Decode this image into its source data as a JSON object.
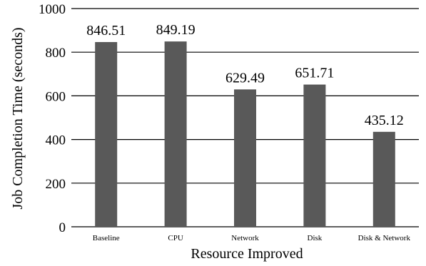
{
  "chart_data": {
    "type": "bar",
    "categories": [
      "Baseline",
      "CPU",
      "Network",
      "Disk",
      "Disk & Network"
    ],
    "values": [
      846.51,
      849.19,
      629.49,
      651.71,
      435.12
    ],
    "data_labels": [
      "846.51",
      "849.19",
      "629.49",
      "651.71",
      "435.12"
    ],
    "title": "",
    "xlabel": "Resource Improved",
    "ylabel": "Job Completion Time (seconds)",
    "ylim": [
      0,
      1000
    ],
    "yticks": [
      0,
      200,
      400,
      600,
      800,
      1000
    ],
    "grid": true,
    "legend": "none",
    "bar_color": "#595959",
    "grid_color": "#000000"
  }
}
